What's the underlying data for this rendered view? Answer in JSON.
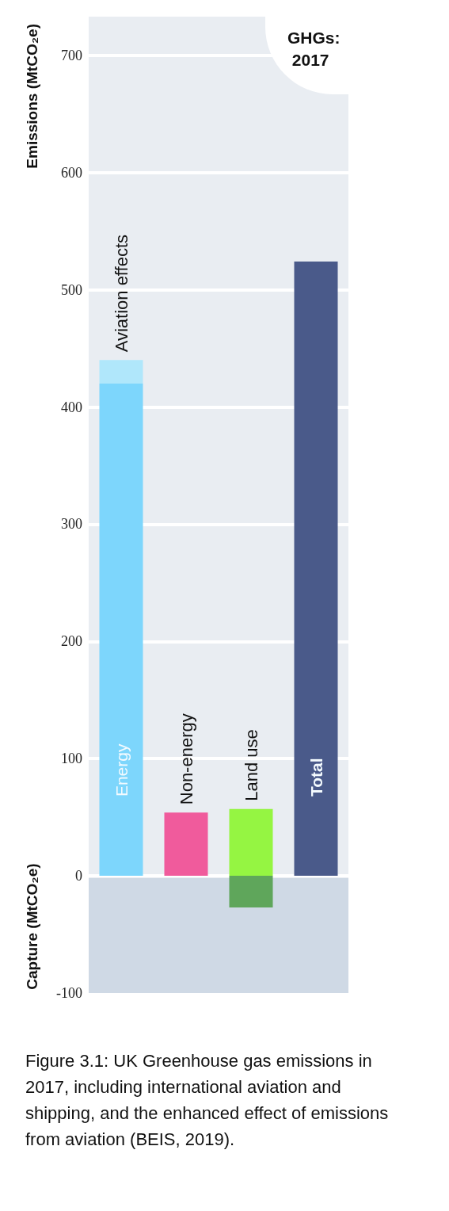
{
  "chart_data": {
    "type": "bar",
    "title": "GHGs: 2017",
    "ylabel": "Emissions (MtCO₂e)",
    "annotations": [
      "Capture (MtCO₂e)",
      "Figure 3.1: UK Greenhouse gas emissions in 2017, including international aviation and shipping, and the enhanced effect of emissions from aviation (BEIS, 2019)."
    ],
    "categories": [
      null,
      null,
      null,
      null
    ],
    "series": [
      {
        "name": "Energy",
        "color": "#7dd6fc",
        "values": [
          420,
          null,
          null,
          null
        ]
      },
      {
        "name": "Aviation effects",
        "color": "#b0e7fb",
        "values": [
          20,
          null,
          null,
          null
        ]
      },
      {
        "name": "Non-energy",
        "color": "#f05b9c",
        "values": [
          null,
          54,
          null,
          null
        ]
      },
      {
        "name": "Land use",
        "color": "#95f542",
        "values": [
          null,
          null,
          57,
          null
        ]
      },
      {
        "color": "#5fa65b",
        "values": [
          null,
          null,
          -27,
          null
        ]
      },
      {
        "name": "Total",
        "color": "#4a5a8a",
        "values": [
          null,
          null,
          null,
          524
        ]
      }
    ],
    "stacked": true,
    "ylim": [
      -100,
      733
    ],
    "yticks": [
      -100,
      0,
      100,
      200,
      300,
      400,
      500,
      600,
      700
    ],
    "grid": "y",
    "tick_labels": "y",
    "bands": [
      {
        "axis": "y",
        "from": -100,
        "to": 0,
        "color": "#cfd9e5"
      }
    ]
  }
}
